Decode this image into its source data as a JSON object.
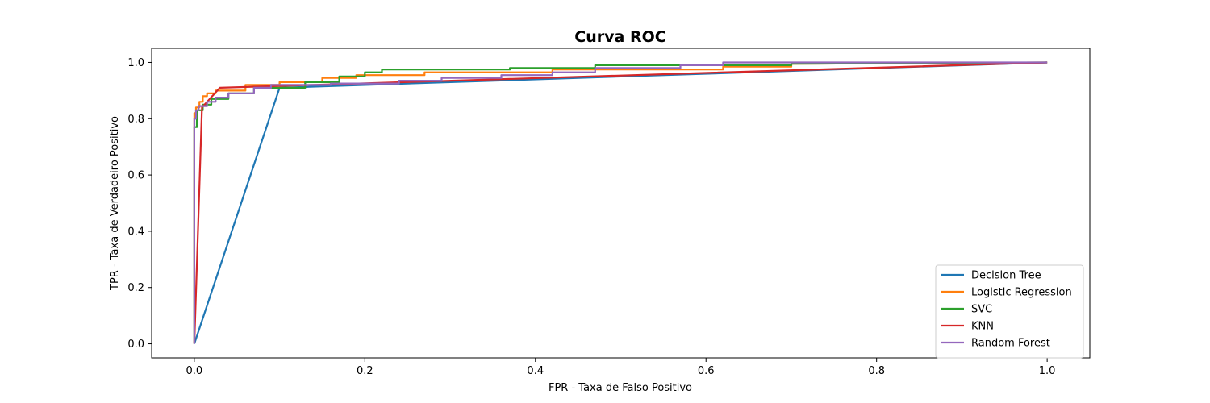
{
  "chart_data": {
    "type": "line",
    "title": "Curva ROC",
    "xlabel": "FPR - Taxa de Falso Positivo",
    "ylabel": "TPR - Taxa de Verdadeiro Positivo",
    "xlim": [
      -0.05,
      1.05
    ],
    "ylim": [
      -0.05,
      1.05
    ],
    "xticks": [
      "0.0",
      "0.2",
      "0.4",
      "0.6",
      "0.8",
      "1.0"
    ],
    "yticks": [
      "0.0",
      "0.2",
      "0.4",
      "0.6",
      "0.8",
      "1.0"
    ],
    "grid": false,
    "legend_position": "bottom-right",
    "series": [
      {
        "name": "Decision Tree",
        "color": "#1f77b4",
        "x": [
          0,
          0.1,
          1.0
        ],
        "y": [
          0,
          0.91,
          1.0
        ]
      },
      {
        "name": "Logistic Regression",
        "color": "#ff7f0e",
        "x": [
          0,
          0,
          0.002,
          0.002,
          0.006,
          0.006,
          0.01,
          0.01,
          0.015,
          0.015,
          0.025,
          0.025,
          0.06,
          0.06,
          0.1,
          0.1,
          0.15,
          0.15,
          0.19,
          0.19,
          0.27,
          0.27,
          0.42,
          0.42,
          0.62,
          0.62,
          0.7,
          0.7,
          1.0
        ],
        "y": [
          0,
          0.82,
          0.82,
          0.84,
          0.84,
          0.86,
          0.86,
          0.88,
          0.88,
          0.89,
          0.89,
          0.9,
          0.9,
          0.92,
          0.92,
          0.93,
          0.93,
          0.945,
          0.945,
          0.955,
          0.955,
          0.965,
          0.965,
          0.975,
          0.975,
          0.985,
          0.985,
          0.995,
          1.0
        ]
      },
      {
        "name": "SVC",
        "color": "#2ca02c",
        "x": [
          0,
          0,
          0.003,
          0.003,
          0.01,
          0.01,
          0.02,
          0.02,
          0.04,
          0.04,
          0.07,
          0.07,
          0.13,
          0.13,
          0.17,
          0.17,
          0.2,
          0.2,
          0.22,
          0.22,
          0.37,
          0.37,
          0.47,
          0.47,
          0.7,
          0.7,
          1.0
        ],
        "y": [
          0,
          0.77,
          0.77,
          0.83,
          0.83,
          0.85,
          0.85,
          0.87,
          0.87,
          0.89,
          0.89,
          0.91,
          0.91,
          0.93,
          0.93,
          0.95,
          0.95,
          0.965,
          0.965,
          0.975,
          0.975,
          0.98,
          0.98,
          0.99,
          0.99,
          0.995,
          1.0
        ]
      },
      {
        "name": "KNN",
        "color": "#d62728",
        "x": [
          0,
          0.009,
          0.03,
          1.0
        ],
        "y": [
          0,
          0.84,
          0.91,
          1.0
        ]
      },
      {
        "name": "Random Forest",
        "color": "#9467bd",
        "x": [
          0,
          0,
          0.002,
          0.002,
          0.005,
          0.005,
          0.015,
          0.015,
          0.025,
          0.025,
          0.04,
          0.04,
          0.07,
          0.07,
          0.09,
          0.09,
          0.16,
          0.16,
          0.24,
          0.24,
          0.29,
          0.29,
          0.36,
          0.36,
          0.42,
          0.42,
          0.47,
          0.47,
          0.57,
          0.57,
          0.62,
          0.62,
          1.0
        ],
        "y": [
          0,
          0.8,
          0.8,
          0.83,
          0.83,
          0.845,
          0.845,
          0.86,
          0.86,
          0.875,
          0.875,
          0.89,
          0.89,
          0.91,
          0.91,
          0.92,
          0.92,
          0.925,
          0.925,
          0.935,
          0.935,
          0.945,
          0.945,
          0.955,
          0.955,
          0.965,
          0.965,
          0.98,
          0.98,
          0.99,
          0.99,
          1.0,
          1.0
        ]
      }
    ]
  }
}
